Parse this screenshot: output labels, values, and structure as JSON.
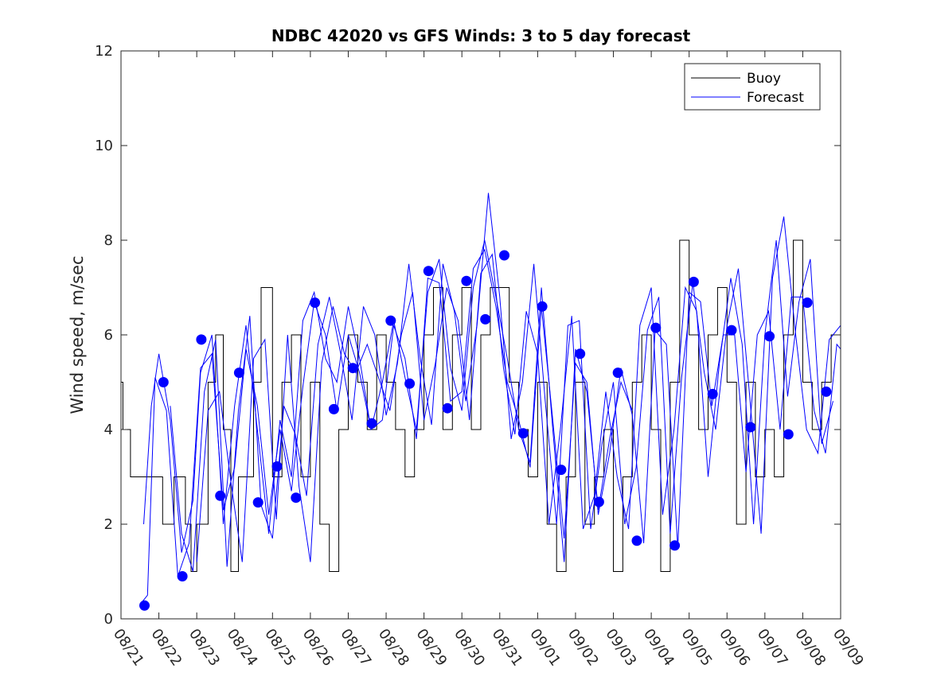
{
  "chart_data": {
    "type": "line",
    "title": "NDBC 42020 vs GFS Winds: 3 to 5 day forecast",
    "xlabel": "",
    "ylabel": "Wind speed, m/sec",
    "ylim": [
      0,
      12
    ],
    "yticks": [
      "0",
      "2",
      "4",
      "6",
      "8",
      "10",
      "12"
    ],
    "xlim": [
      0,
      19
    ],
    "xticks": [
      "08/21",
      "08/22",
      "08/23",
      "08/24",
      "08/25",
      "08/26",
      "08/27",
      "08/28",
      "08/29",
      "08/30",
      "08/31",
      "09/01",
      "09/02",
      "09/03",
      "09/04",
      "09/05",
      "09/06",
      "09/07",
      "09/08",
      "09/09"
    ],
    "legend": {
      "position": "top-right",
      "entries": [
        "Buoy",
        "Forecast"
      ]
    },
    "colors": {
      "buoy": "#000000",
      "forecast": "#0000ff",
      "markers": "#0000ff"
    },
    "series": [
      {
        "name": "Buoy",
        "style": "step",
        "x": [
          0,
          0.05,
          0.15,
          0.25,
          0.35,
          0.5,
          0.75,
          1.1,
          1.4,
          1.7,
          1.85,
          2.0,
          2.3,
          2.5,
          2.7,
          2.9,
          3.1,
          3.3,
          3.5,
          3.7,
          4.0,
          4.25,
          4.5,
          4.75,
          5.0,
          5.25,
          5.5,
          5.75,
          6.0,
          6.25,
          6.5,
          6.75,
          7.0,
          7.25,
          7.5,
          7.75,
          8.0,
          8.25,
          8.5,
          8.75,
          9.0,
          9.25,
          9.5,
          9.75,
          10.0,
          10.25,
          10.5,
          10.75,
          11.0,
          11.25,
          11.5,
          11.75,
          12.0,
          12.25,
          12.5,
          12.75,
          13.0,
          13.25,
          13.5,
          13.75,
          14.0,
          14.25,
          14.5,
          14.75,
          15.0,
          15.25,
          15.5,
          15.75,
          16.0,
          16.25,
          16.5,
          16.75,
          17.0,
          17.25,
          17.5,
          17.75,
          18.0,
          18.25,
          18.5,
          18.75,
          19.0
        ],
        "values": [
          5,
          4,
          4,
          3,
          3,
          3,
          3,
          2,
          3,
          2,
          1,
          2,
          5,
          6,
          4,
          1,
          3,
          3,
          5,
          7,
          3,
          5,
          6,
          3,
          5,
          2,
          1,
          4,
          6,
          5,
          4,
          6,
          5,
          4,
          3,
          4,
          6,
          7,
          4,
          6,
          7,
          4,
          6,
          7,
          7,
          5,
          4,
          3,
          5,
          2,
          1,
          3,
          5,
          2,
          3,
          4,
          1,
          3,
          5,
          6,
          4,
          1,
          5,
          8,
          6,
          4,
          6,
          7,
          5,
          2,
          5,
          3,
          4,
          3,
          6,
          8,
          5,
          4,
          5,
          6,
          6
        ]
      },
      {
        "name": "Forecast",
        "style": "line",
        "runs": [
          {
            "x": [
              0.6,
              0.8,
              1.0,
              1.3,
              1.6,
              1.9,
              2.1,
              2.4,
              2.7,
              3.0,
              3.3,
              3.6,
              3.9,
              4.2,
              4.5,
              4.8,
              5.1,
              5.4,
              5.7,
              6.0,
              6.3,
              6.6,
              6.9,
              7.2,
              7.5,
              7.8,
              8.1,
              8.4,
              8.7,
              9.0,
              9.3,
              9.6,
              9.9,
              10.2,
              10.5,
              10.8,
              11.1,
              11.4,
              11.7,
              12.0,
              12.3,
              12.6,
              12.9,
              13.2,
              13.5
            ],
            "values": [
              2.0,
              4.5,
              5.6,
              4.2,
              1.4,
              2.5,
              5.2,
              6.0,
              2.0,
              4.5,
              6.2,
              4.0,
              1.8,
              4.2,
              3.0,
              6.3,
              6.9,
              5.5,
              5.0,
              6.6,
              5.5,
              4.0,
              5.0,
              6.3,
              5.1,
              4.0,
              6.9,
              7.6,
              5.3,
              4.4,
              7.0,
              8.0,
              6.8,
              5.5,
              4.0,
              3.3,
              7.0,
              4.0,
              1.2,
              5.7,
              4.8,
              2.3,
              3.8,
              5.0,
              4.4
            ]
          },
          {
            "x": [
              0.5,
              0.7,
              0.9,
              1.2,
              1.5,
              1.8,
              2.1,
              2.4,
              2.7,
              3.0,
              3.3,
              3.6,
              3.9,
              4.2,
              4.5,
              4.8,
              5.1,
              5.4,
              5.7,
              6.0,
              6.3,
              6.6,
              6.9,
              7.2,
              7.5,
              7.8,
              8.1,
              8.4,
              8.7,
              9.0,
              9.3,
              9.6,
              9.9,
              10.2,
              10.5,
              10.8,
              11.1,
              11.4,
              11.7,
              12.0,
              12.3,
              12.6,
              12.9,
              13.2,
              13.5,
              13.8,
              14.1,
              14.4,
              14.7,
              15.0,
              15.3,
              15.6,
              15.9,
              16.2,
              16.5,
              16.8,
              17.1,
              17.4,
              17.7,
              18.0,
              18.3,
              18.6,
              18.9,
              19.0
            ],
            "values": [
              0.3,
              0.5,
              5.1,
              4.4,
              0.9,
              1.6,
              5.3,
              5.6,
              2.3,
              3.2,
              5.7,
              4.5,
              2.2,
              4.0,
              2.7,
              4.9,
              6.7,
              6.0,
              4.4,
              6.0,
              5.2,
              4.0,
              4.2,
              6.2,
              5.5,
              3.8,
              7.2,
              7.1,
              4.6,
              4.8,
              7.4,
              7.8,
              6.6,
              5.0,
              4.2,
              3.2,
              6.6,
              4.2,
              1.7,
              5.4,
              5.0,
              2.2,
              3.5,
              5.3,
              4.3,
              1.6,
              6.1,
              5.8,
              1.5,
              6.9,
              6.7,
              4.5,
              6.0,
              6.0,
              3.1,
              6.0,
              6.5,
              4.0,
              6.8,
              6.8,
              4.4,
              3.5,
              5.8,
              5.7
            ]
          },
          {
            "x": [
              1.3,
              1.6,
              1.9,
              2.2,
              2.5,
              2.8,
              3.1,
              3.4,
              3.7,
              4.0,
              4.3,
              4.6,
              4.9,
              5.2,
              5.5,
              5.8,
              6.1,
              6.4,
              6.7,
              7.0,
              7.3,
              7.6,
              7.9,
              8.2,
              8.5,
              8.8,
              9.1,
              9.4,
              9.7,
              10.0,
              10.3,
              10.6,
              10.9,
              11.2,
              11.5,
              11.8,
              12.1,
              12.4,
              12.7,
              13.0,
              13.3,
              13.6,
              13.9,
              14.2,
              14.5,
              14.8,
              15.1,
              15.4,
              15.7,
              16.0,
              16.3,
              16.6,
              16.9,
              17.2,
              17.5,
              17.8,
              18.1,
              18.4,
              18.7,
              19.0
            ],
            "values": [
              4.5,
              1.8,
              1.0,
              4.8,
              5.9,
              1.1,
              4.4,
              6.4,
              2.4,
              1.7,
              4.5,
              3.9,
              2.6,
              5.8,
              6.8,
              5.6,
              4.2,
              6.6,
              6.0,
              4.3,
              5.4,
              7.5,
              5.5,
              4.1,
              7.5,
              6.5,
              4.6,
              6.2,
              9.0,
              6.8,
              3.8,
              5.0,
              7.5,
              4.6,
              2.0,
              6.2,
              6.3,
              1.9,
              3.7,
              5.0,
              2.0,
              3.2,
              6.1,
              6.8,
              1.8,
              5.1,
              7.1,
              5.2,
              4.0,
              6.2,
              7.4,
              4.7,
              1.8,
              7.2,
              8.5,
              6.1,
              4.0,
              3.5,
              5.9,
              6.2
            ]
          },
          {
            "x": [
              2.0,
              2.3,
              2.6,
              2.9,
              3.2,
              3.5,
              3.8,
              4.1,
              4.4,
              4.7,
              5.0,
              5.3,
              5.6,
              5.9,
              6.2,
              6.5,
              6.8,
              7.1,
              7.4,
              7.7,
              8.0,
              8.3,
              8.6,
              8.9,
              9.2,
              9.5,
              9.8,
              10.1,
              10.4,
              10.7,
              11.0,
              11.3,
              11.6,
              11.9,
              12.2,
              12.5,
              12.8,
              13.1,
              13.4,
              13.7,
              14.0,
              14.3,
              14.6,
              14.9,
              15.2,
              15.5,
              15.8,
              16.1,
              16.4,
              16.7,
              17.0,
              17.3,
              17.6,
              17.9,
              18.2,
              18.5,
              18.8
            ],
            "values": [
              1.2,
              4.4,
              4.8,
              2.9,
              1.2,
              5.5,
              5.9,
              2.1,
              6.0,
              2.8,
              1.2,
              5.4,
              6.6,
              5.6,
              5.2,
              5.8,
              5.1,
              4.4,
              6.0,
              6.9,
              4.2,
              5.4,
              7.0,
              6.3,
              4.2,
              7.3,
              7.7,
              5.3,
              3.9,
              6.5,
              5.6,
              2.0,
              4.0,
              6.4,
              1.9,
              2.6,
              4.8,
              3.0,
              1.9,
              6.2,
              7.0,
              2.2,
              4.0,
              7.0,
              6.5,
              3.0,
              5.4,
              7.2,
              5.8,
              2.0,
              6.0,
              8.0,
              4.7,
              6.7,
              7.6,
              3.7,
              4.6
            ]
          }
        ]
      },
      {
        "name": "Forecast markers",
        "style": "markers",
        "x": [
          0.62,
          1.12,
          1.62,
          2.12,
          2.62,
          3.12,
          3.62,
          4.12,
          4.62,
          5.12,
          5.62,
          6.12,
          6.62,
          7.12,
          7.62,
          8.12,
          8.62,
          9.12,
          9.62,
          10.12,
          10.62,
          11.12,
          11.62,
          12.12,
          12.62,
          13.12,
          13.62,
          14.12,
          14.62,
          15.12,
          15.62,
          16.12,
          16.62,
          17.12,
          17.62,
          18.12,
          18.62
        ],
        "values": [
          0.28,
          5.0,
          0.9,
          5.9,
          2.6,
          5.2,
          2.46,
          3.22,
          2.56,
          6.68,
          4.43,
          5.3,
          4.13,
          6.3,
          4.97,
          7.35,
          4.45,
          7.14,
          6.33,
          7.68,
          3.92,
          6.6,
          3.15,
          5.6,
          2.47,
          5.2,
          1.65,
          6.15,
          1.55,
          7.12,
          4.75,
          6.1,
          4.05,
          5.97,
          3.9,
          6.68,
          4.8
        ]
      }
    ]
  }
}
